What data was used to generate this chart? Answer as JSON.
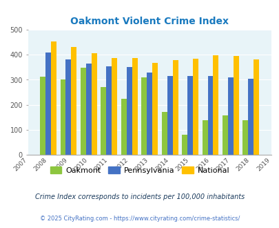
{
  "title": "Oakmont Violent Crime Index",
  "years": [
    2008,
    2009,
    2010,
    2011,
    2012,
    2013,
    2014,
    2015,
    2016,
    2017,
    2018
  ],
  "oakmont": [
    313,
    300,
    348,
    272,
    225,
    310,
    172,
    80,
    140,
    157,
    140
  ],
  "pennsylvania": [
    408,
    380,
    365,
    355,
    350,
    330,
    315,
    315,
    315,
    311,
    305
  ],
  "national": [
    452,
    432,
    405,
    388,
    388,
    368,
    378,
    384,
    398,
    394,
    380
  ],
  "color_oakmont": "#8dc63f",
  "color_pennsylvania": "#4472c4",
  "color_national": "#ffc000",
  "bg_color": "#e8f4f8",
  "ylim": [
    0,
    500
  ],
  "yticks": [
    0,
    100,
    200,
    300,
    400,
    500
  ],
  "xlabel_years": [
    2007,
    2008,
    2009,
    2010,
    2011,
    2012,
    2013,
    2014,
    2015,
    2016,
    2017,
    2018,
    2019
  ],
  "footnote1": "Crime Index corresponds to incidents per 100,000 inhabitants",
  "footnote2": "© 2025 CityRating.com - https://www.cityrating.com/crime-statistics/"
}
